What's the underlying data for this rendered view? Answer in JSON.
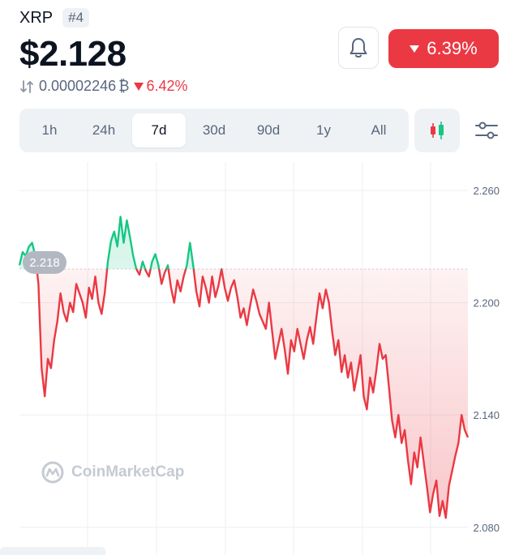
{
  "coin": {
    "name": "XRP",
    "rank": "#4",
    "price": "$2.128",
    "btc_price": "0.00002246",
    "btc_symbol": "₿",
    "btc_change": "6.42%",
    "change_24h": "6.39%",
    "change_color": "#ea3943"
  },
  "icons": {
    "bell": "bell-icon",
    "swap": "swap-arrows-icon",
    "candles": "candlestick-icon",
    "settings": "sliders-icon",
    "logo": "coinmarketcap-logo-icon"
  },
  "tabs": [
    {
      "label": "1h",
      "active": false
    },
    {
      "label": "24h",
      "active": false
    },
    {
      "label": "7d",
      "active": true
    },
    {
      "label": "30d",
      "active": false
    },
    {
      "label": "90d",
      "active": false
    },
    {
      "label": "1y",
      "active": false
    },
    {
      "label": "All",
      "active": false
    }
  ],
  "chart_data": {
    "type": "line",
    "yticks": [
      "2.260",
      "2.200",
      "2.140",
      "2.080"
    ],
    "ylim": [
      2.076,
      2.273
    ],
    "reference_value": 2.218,
    "reference_label": "2.218",
    "up_color": "#16c784",
    "down_color": "#ea3943",
    "grid": true,
    "series": [
      {
        "values": [
          2.22,
          2.227,
          2.225,
          2.23,
          2.232,
          2.225,
          2.21,
          2.165,
          2.15,
          2.17,
          2.165,
          2.18,
          2.19,
          2.205,
          2.195,
          2.19,
          2.2,
          2.195,
          2.21,
          2.205,
          2.2,
          2.192,
          2.208,
          2.202,
          2.214,
          2.2,
          2.194,
          2.205,
          2.222,
          2.233,
          2.238,
          2.23,
          2.246,
          2.232,
          2.244,
          2.235,
          2.225,
          2.218,
          2.215,
          2.222,
          2.217,
          2.214,
          2.222,
          2.226,
          2.22,
          2.21,
          2.216,
          2.22,
          2.208,
          2.2,
          2.212,
          2.206,
          2.214,
          2.22,
          2.232,
          2.22,
          2.206,
          2.198,
          2.214,
          2.208,
          2.2,
          2.214,
          2.203,
          2.209,
          2.218,
          2.208,
          2.201,
          2.208,
          2.212,
          2.203,
          2.192,
          2.197,
          2.188,
          2.198,
          2.207,
          2.201,
          2.194,
          2.19,
          2.186,
          2.2,
          2.185,
          2.17,
          2.178,
          2.186,
          2.175,
          2.162,
          2.18,
          2.174,
          2.186,
          2.178,
          2.17,
          2.18,
          2.187,
          2.178,
          2.192,
          2.205,
          2.197,
          2.207,
          2.2,
          2.185,
          2.172,
          2.18,
          2.163,
          2.172,
          2.16,
          2.168,
          2.153,
          2.162,
          2.172,
          2.15,
          2.143,
          2.16,
          2.152,
          2.164,
          2.178,
          2.17,
          2.172,
          2.155,
          2.137,
          2.128,
          2.14,
          2.125,
          2.132,
          2.116,
          2.103,
          2.12,
          2.112,
          2.128,
          2.115,
          2.102,
          2.088,
          2.098,
          2.105,
          2.086,
          2.094,
          2.085,
          2.102,
          2.11,
          2.118,
          2.125,
          2.14,
          2.132,
          2.128
        ]
      }
    ]
  },
  "watermark": "CoinMarketCap"
}
